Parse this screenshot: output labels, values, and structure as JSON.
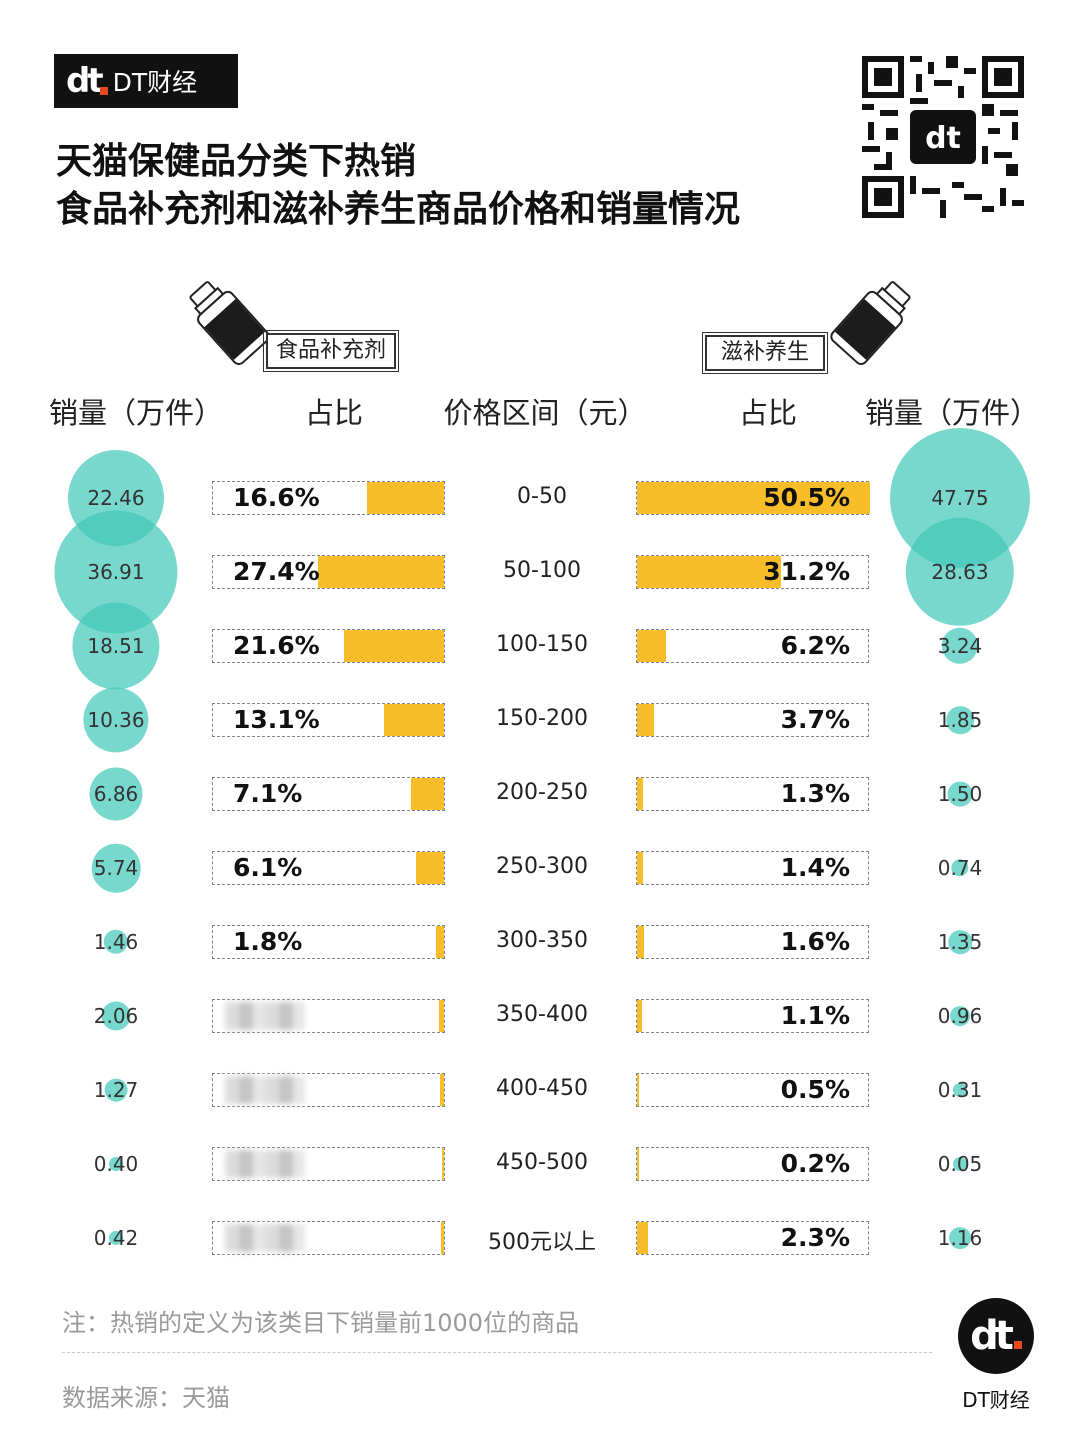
{
  "brand": {
    "mark": "dt",
    "name": "DT财经"
  },
  "title": {
    "line1": "天猫保健品分类下热销",
    "line2": "食品补充剂和滋补养生商品价格和销量情况"
  },
  "labels": {
    "left_category": "食品补充剂",
    "right_category": "滋补养生"
  },
  "headers": {
    "left_sales": "销量（万件）",
    "left_share": "占比",
    "price_range": "价格区间（元）",
    "right_share": "占比",
    "right_sales": "销量（万件）"
  },
  "chart_data": {
    "type": "table",
    "title": "天猫保健品分类下热销 食品补充剂和滋补养生商品价格和销量情况",
    "categories": [
      "0-50",
      "50-100",
      "100-150",
      "150-200",
      "200-250",
      "250-300",
      "300-350",
      "350-400",
      "400-450",
      "450-500",
      "500元以上"
    ],
    "series": [
      {
        "name": "食品补充剂",
        "sales_labels": [
          "22.46",
          "36.91",
          "18.51",
          "10.36",
          "6.86",
          "5.74",
          "1.46",
          "2.06",
          "1.27",
          "0.40",
          "0.42"
        ],
        "sales": [
          22.46,
          36.91,
          18.51,
          10.36,
          6.86,
          5.74,
          1.46,
          2.06,
          1.27,
          0.4,
          0.42
        ],
        "share": [
          16.6,
          27.4,
          21.6,
          13.1,
          7.1,
          6.1,
          1.8,
          1.0,
          0.8,
          0.5,
          0.6
        ],
        "share_labels": [
          "16.6%",
          "27.4%",
          "21.6%",
          "13.1%",
          "7.1%",
          "6.1%",
          "1.8%",
          "",
          "",
          "",
          ""
        ]
      },
      {
        "name": "滋补养生",
        "sales_labels": [
          "47.75",
          "28.63",
          "3.24",
          "1.85",
          "1.50",
          "0.74",
          "1.35",
          "0.96",
          "0.31",
          "0.05",
          "1.16"
        ],
        "sales": [
          47.75,
          28.63,
          3.24,
          1.85,
          1.5,
          0.74,
          1.35,
          0.96,
          0.31,
          0.05,
          1.16
        ],
        "share": [
          50.5,
          31.2,
          6.2,
          3.7,
          1.3,
          1.4,
          1.6,
          1.1,
          0.5,
          0.2,
          2.3
        ],
        "share_labels": [
          "50.5%",
          "31.2%",
          "6.2%",
          "3.7%",
          "1.3%",
          "1.4%",
          "1.6%",
          "1.1%",
          "0.5%",
          "0.2%",
          "2.3%"
        ]
      }
    ],
    "colors": {
      "bar": "#F9BD2A",
      "bubble": "#40C8B9"
    }
  },
  "footer": {
    "note": "注：热销的定义为该类目下销量前1000位的商品",
    "source": "数据来源：天猫",
    "logo_name": "DT财经"
  }
}
